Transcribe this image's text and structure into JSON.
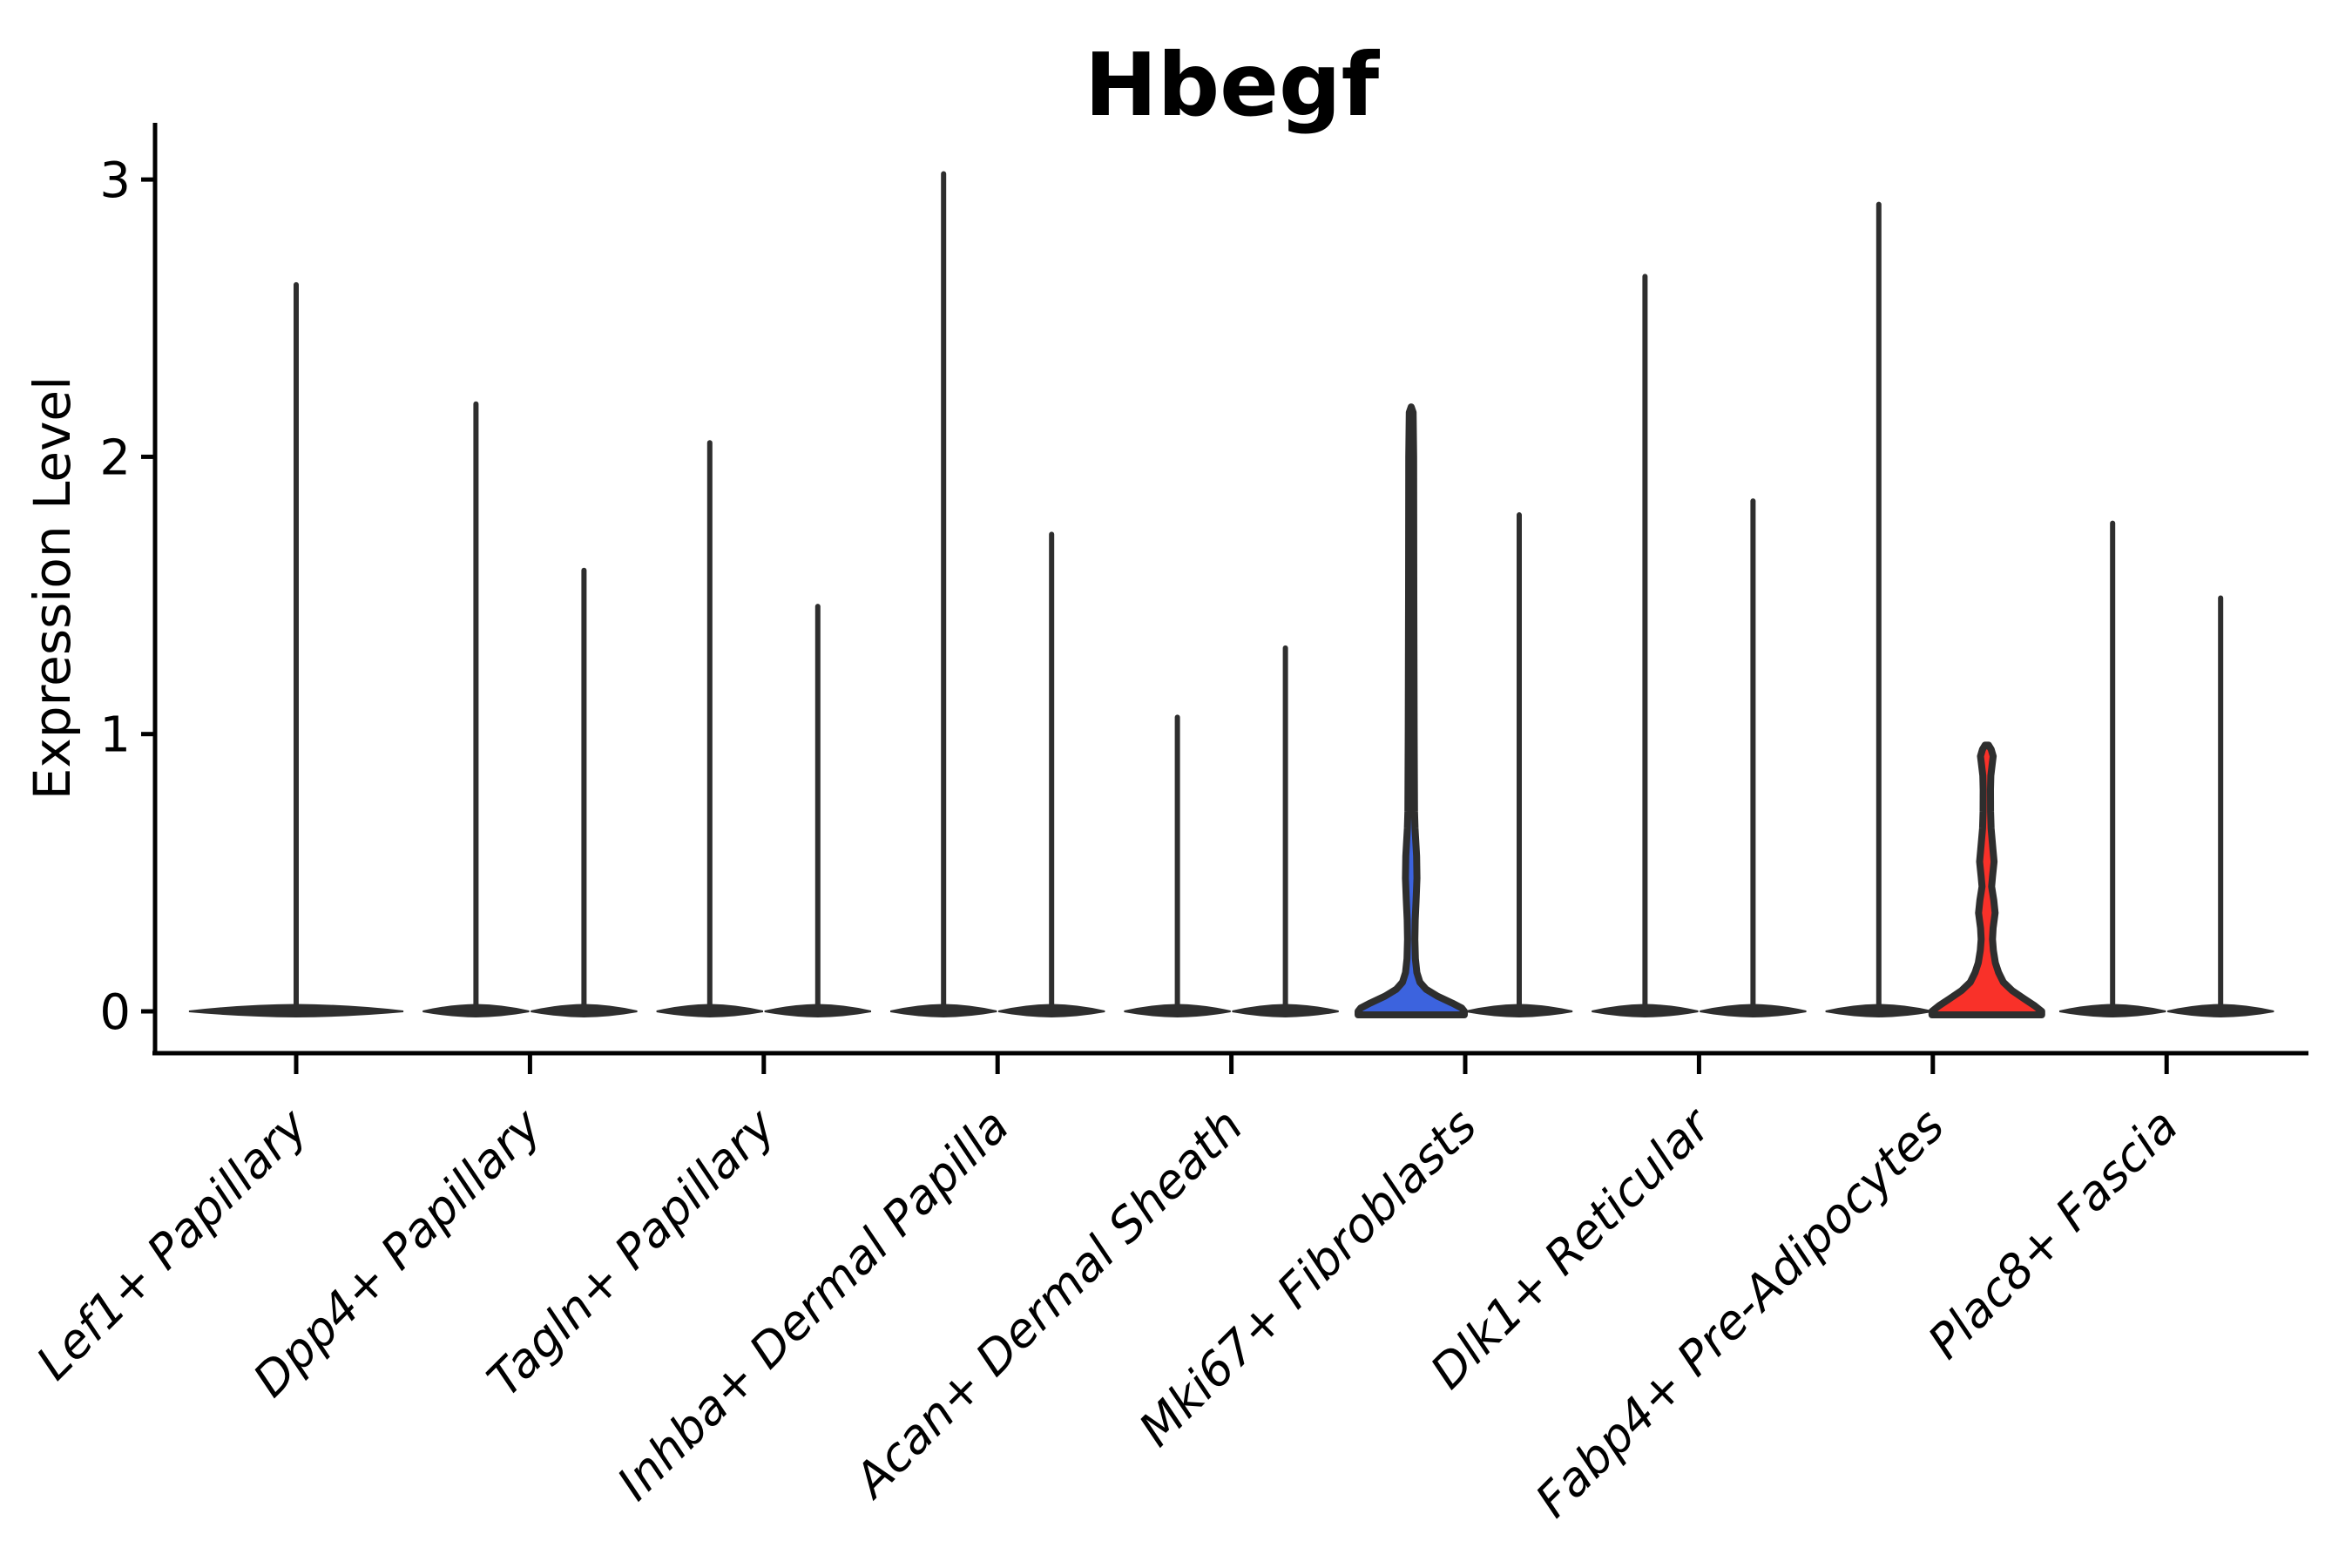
{
  "title": "Hbegf",
  "y_axis": {
    "label": "Expression Level",
    "tick_labels": [
      "0",
      "1",
      "2",
      "3"
    ]
  },
  "colors": {
    "axis": "#000000",
    "violin_line": "#2e2e2e",
    "blue_fill": "#3C63DE",
    "red_fill": "#F93129"
  },
  "chart_data": {
    "type": "violin",
    "title": "Hbegf",
    "xlabel": "",
    "ylabel": "Expression Level",
    "ylim": [
      0,
      3.2
    ],
    "yticks": [
      0,
      1,
      2,
      3
    ],
    "grid": false,
    "legend": "none",
    "x_tick_rotation": 45,
    "categories": [
      "Lef1+ Papillary",
      "Dpp4+ Papillary",
      "Tagln+ Papillary",
      "Inhba+ Dermal Papilla",
      "Acan+ Dermal Sheath",
      "Mki67+ Fibroblasts",
      "Dlk1+ Reticular",
      "Fabp4+ Pre-Adipocytes",
      "Plac8+ Fascia"
    ],
    "series": [
      {
        "category": "Lef1+ Papillary",
        "violins": [
          {
            "group": "center",
            "max_expression": 2.63,
            "style": "spike"
          }
        ]
      },
      {
        "category": "Dpp4+ Papillary",
        "violins": [
          {
            "group": "left",
            "max_expression": 2.2,
            "style": "spike"
          },
          {
            "group": "right",
            "max_expression": 1.6,
            "style": "spike"
          }
        ]
      },
      {
        "category": "Tagln+ Papillary",
        "violins": [
          {
            "group": "left",
            "max_expression": 2.06,
            "style": "spike"
          },
          {
            "group": "right",
            "max_expression": 1.47,
            "style": "spike"
          }
        ]
      },
      {
        "category": "Inhba+ Dermal Papilla",
        "violins": [
          {
            "group": "left",
            "max_expression": 3.03,
            "style": "spike"
          },
          {
            "group": "right",
            "max_expression": 1.73,
            "style": "spike"
          }
        ]
      },
      {
        "category": "Acan+ Dermal Sheath",
        "violins": [
          {
            "group": "left",
            "max_expression": 1.07,
            "style": "spike"
          },
          {
            "group": "right",
            "max_expression": 1.32,
            "style": "spike"
          }
        ]
      },
      {
        "category": "Mki67+ Fibroblasts",
        "violins": [
          {
            "group": "left",
            "max_expression": 2.18,
            "style": "filled",
            "fill": "#3C63DE",
            "profile": [
              [
                2.18,
                0
              ],
              [
                2.16,
                2.2
              ],
              [
                2.0,
                2.8
              ],
              [
                1.5,
                3.0
              ],
              [
                1.0,
                3.4
              ],
              [
                0.72,
                3.8
              ],
              [
                0.66,
                4.4
              ],
              [
                0.56,
                6.2
              ],
              [
                0.48,
                6.6
              ],
              [
                0.4,
                5.6
              ],
              [
                0.33,
                4.6
              ],
              [
                0.26,
                4.2
              ],
              [
                0.19,
                4.8
              ],
              [
                0.14,
                6.5
              ],
              [
                0.105,
                10
              ],
              [
                0.08,
                17
              ],
              [
                0.055,
                30
              ],
              [
                0.03,
                47
              ],
              [
                0.012,
                58
              ],
              [
                0,
                61
              ]
            ]
          },
          {
            "group": "right",
            "max_expression": 1.8,
            "style": "spike"
          }
        ]
      },
      {
        "category": "Dlk1+ Reticular",
        "violins": [
          {
            "group": "left",
            "max_expression": 2.66,
            "style": "spike"
          },
          {
            "group": "right",
            "max_expression": 1.85,
            "style": "spike"
          }
        ]
      },
      {
        "category": "Fabp4+ Pre-Adipocytes",
        "violins": [
          {
            "group": "left",
            "max_expression": 2.92,
            "style": "spike"
          },
          {
            "group": "right",
            "max_expression": 0.96,
            "style": "filled",
            "fill": "#F93129",
            "profile": [
              [
                0.96,
                2
              ],
              [
                0.945,
                5
              ],
              [
                0.92,
                7.3
              ],
              [
                0.9,
                6.5
              ],
              [
                0.85,
                4.6
              ],
              [
                0.8,
                4.2
              ],
              [
                0.72,
                4.3
              ],
              [
                0.66,
                4.9
              ],
              [
                0.585,
                7
              ],
              [
                0.54,
                8.3
              ],
              [
                0.485,
                6.5
              ],
              [
                0.45,
                5.5
              ],
              [
                0.4,
                8
              ],
              [
                0.355,
                9.5
              ],
              [
                0.3,
                7.2
              ],
              [
                0.26,
                6.5
              ],
              [
                0.22,
                7.5
              ],
              [
                0.175,
                9.8
              ],
              [
                0.14,
                13.5
              ],
              [
                0.105,
                19
              ],
              [
                0.075,
                29
              ],
              [
                0.045,
                43
              ],
              [
                0.02,
                55
              ],
              [
                0,
                63
              ]
            ]
          }
        ]
      },
      {
        "category": "Plac8+ Fascia",
        "violins": [
          {
            "group": "left",
            "max_expression": 1.77,
            "style": "spike"
          },
          {
            "group": "right",
            "max_expression": 1.5,
            "style": "spike"
          }
        ]
      }
    ]
  }
}
